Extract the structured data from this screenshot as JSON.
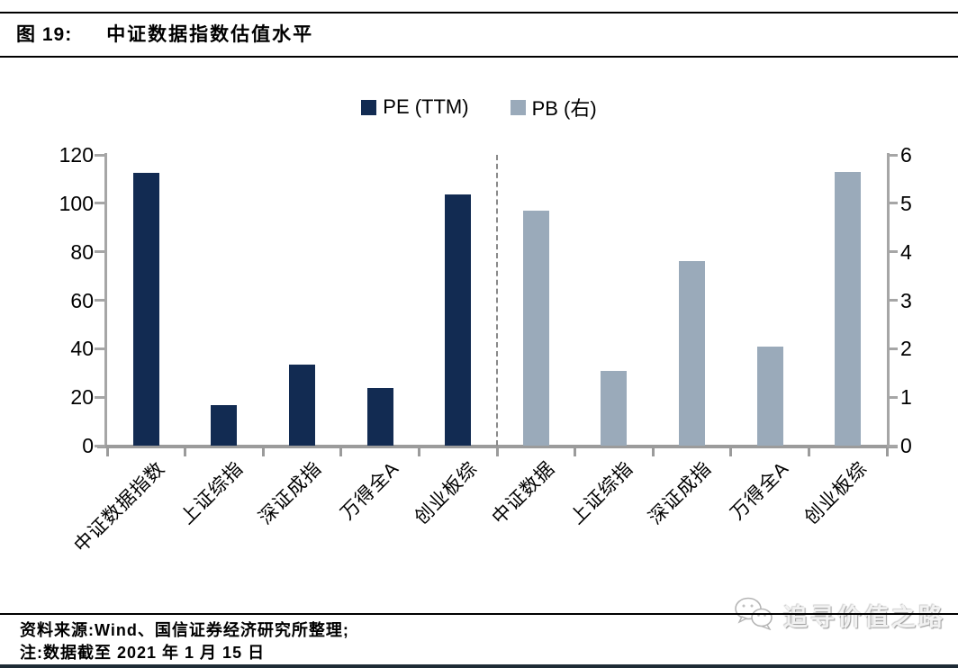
{
  "header": {
    "figure_label": "图 19:",
    "title": "中证数据指数估值水平"
  },
  "legend": {
    "items": [
      {
        "label": "PE (TTM)",
        "color": "#122b52"
      },
      {
        "label": "PB (右)",
        "color": "#9aaaba"
      }
    ]
  },
  "chart_data": {
    "type": "bar",
    "title": "中证数据指数估值水平",
    "grid": false,
    "legend_position": "top-center",
    "left_axis": {
      "min": 0,
      "max": 120,
      "step": 20,
      "ticks": [
        "0",
        "20",
        "40",
        "60",
        "80",
        "100",
        "120"
      ]
    },
    "right_axis": {
      "min": 0,
      "max": 6,
      "step": 1,
      "ticks": [
        "0",
        "1",
        "2",
        "3",
        "4",
        "5",
        "6"
      ]
    },
    "series": [
      {
        "name": "PE (TTM)",
        "axis": "left",
        "color": "#122b52",
        "categories": [
          "中证数据指数",
          "上证综指",
          "深证成指",
          "万得全A",
          "创业板综"
        ],
        "values": [
          112.4,
          16.6,
          33.4,
          23.7,
          103.6
        ]
      },
      {
        "name": "PB (右)",
        "axis": "right",
        "color": "#9aaaba",
        "categories": [
          "中证数据",
          "上证综指",
          "深证成指",
          "万得全A",
          "创业板综"
        ],
        "values": [
          4.85,
          1.55,
          3.8,
          2.05,
          5.65
        ]
      }
    ],
    "divider": "dashed vertical line between PE and PB groups"
  },
  "footer": {
    "source": "资料来源:Wind、国信证券经济研究所整理;",
    "note": "注:数据截至 2021 年 1 月 15 日",
    "watermark_text": "追寻价值之路"
  }
}
